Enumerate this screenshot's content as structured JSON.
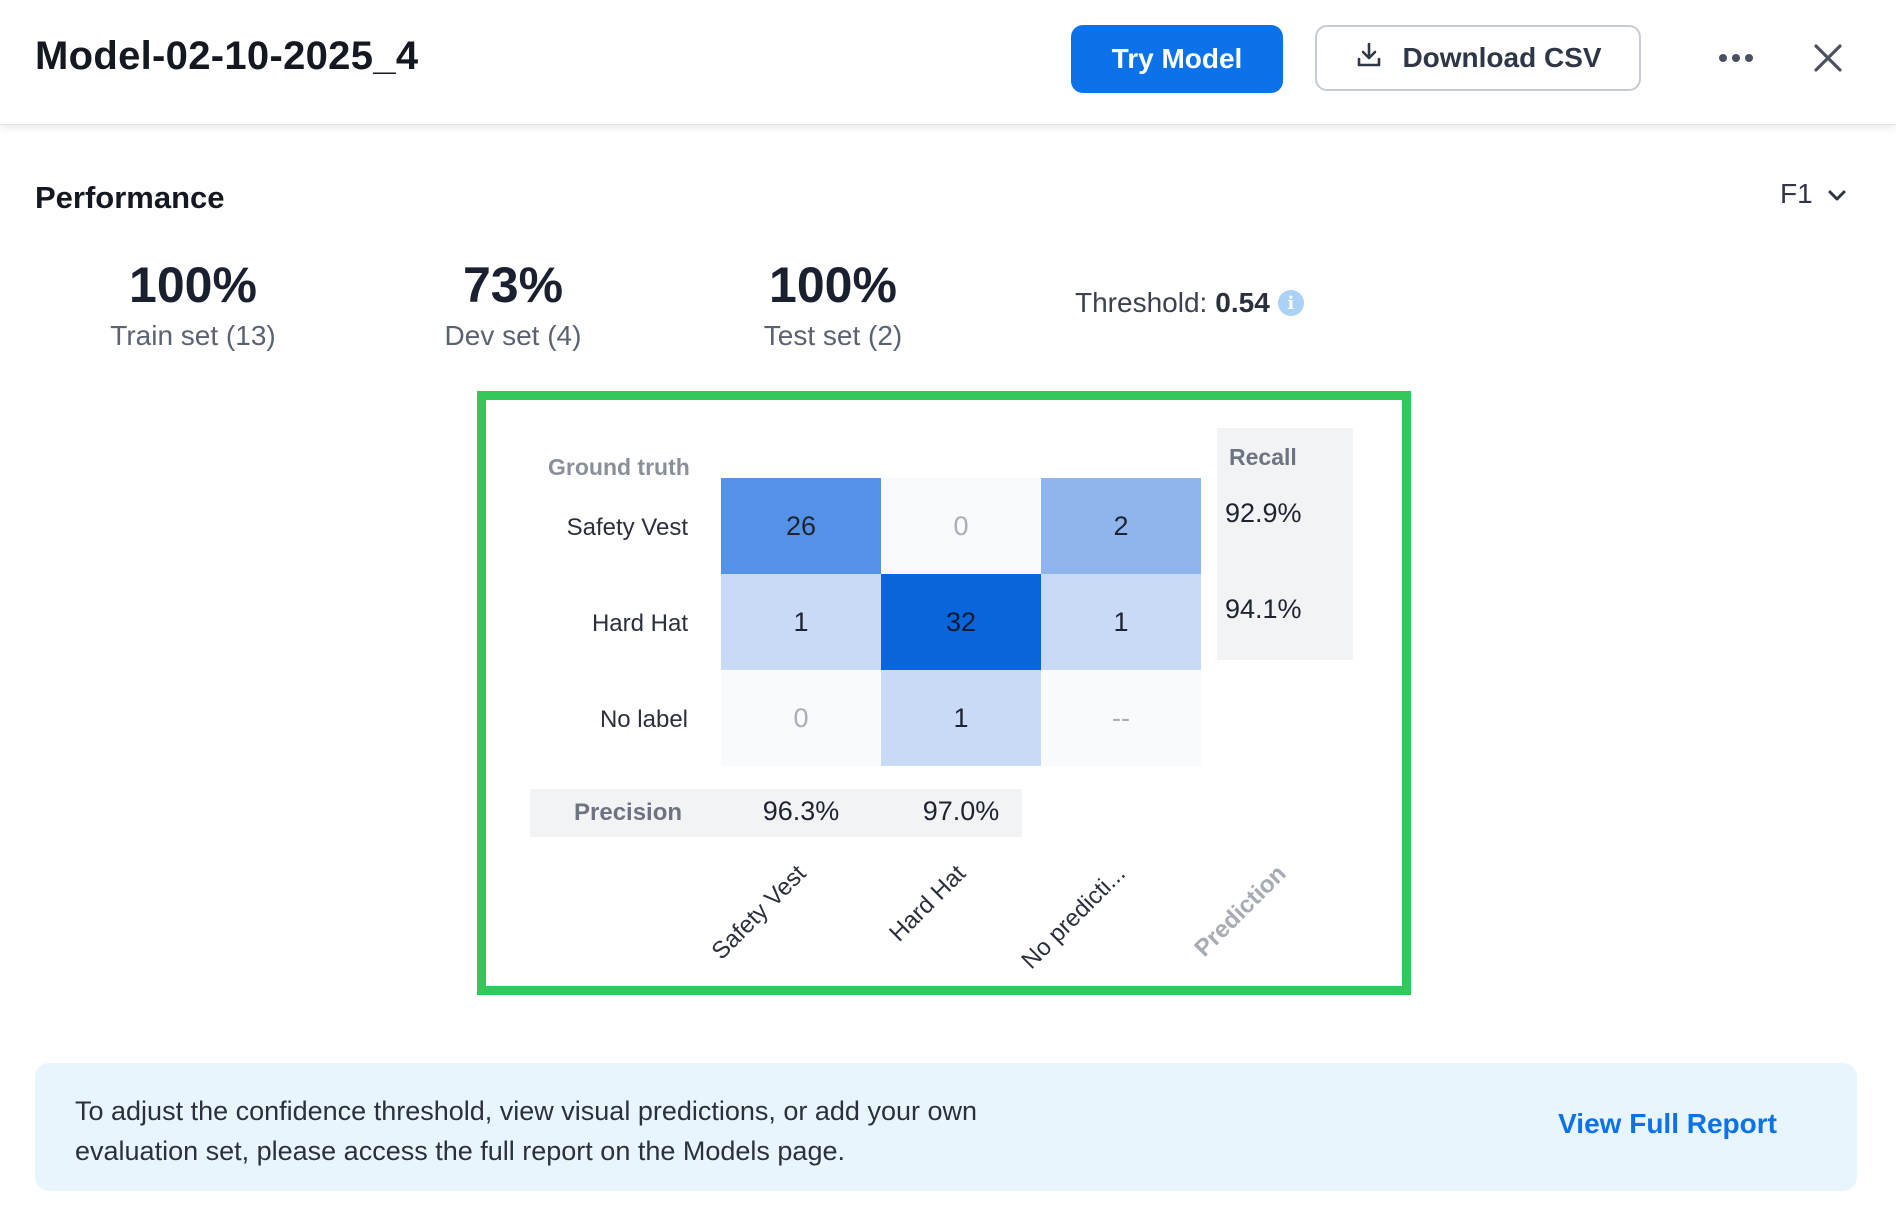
{
  "header": {
    "title": "Model-02-10-2025_4",
    "try_label": "Try Model",
    "csv_label": "Download CSV"
  },
  "performance": {
    "title": "Performance",
    "metric": "F1",
    "stats": [
      {
        "value": "100%",
        "label": "Train set (13)"
      },
      {
        "value": "73%",
        "label": "Dev set (4)"
      },
      {
        "value": "100%",
        "label": "Test set (2)"
      }
    ],
    "threshold_label": "Threshold:",
    "threshold_value": "0.54"
  },
  "matrix": {
    "ground_truth_label": "Ground truth",
    "recall_label": "Recall",
    "precision_label": "Precision",
    "prediction_label": "Prediction",
    "rows": [
      {
        "label": "Safety Vest",
        "cells": [
          "26",
          "0",
          "2"
        ],
        "recall": "92.9%"
      },
      {
        "label": "Hard Hat",
        "cells": [
          "1",
          "32",
          "1"
        ],
        "recall": "94.1%"
      },
      {
        "label": "No label",
        "cells": [
          "0",
          "1",
          "--"
        ],
        "recall": ""
      }
    ],
    "columns": [
      "Safety Vest",
      "Hard Hat",
      "No predicti..."
    ],
    "precision": [
      "96.3%",
      "97.0%"
    ]
  },
  "banner": {
    "text_line1": "To adjust the confidence threshold, view visual predictions, or add your own",
    "text_line2": "evaluation set, please access the full report on the Models page.",
    "link_label": "View Full Report"
  }
}
